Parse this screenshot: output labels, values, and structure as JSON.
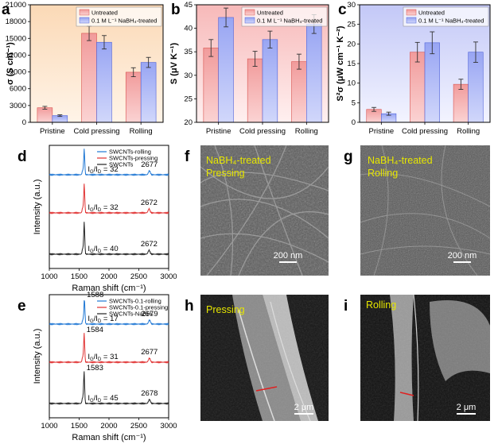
{
  "panels": {
    "a": "a",
    "b": "b",
    "c": "c",
    "d": "d",
    "e": "e",
    "f": "f",
    "g": "g",
    "h": "h",
    "i": "i"
  },
  "colors": {
    "untreated": "#f4a6a6",
    "treated": "#a9b4f5",
    "untreated_edge": "#d9534f",
    "treated_edge": "#4f62d9",
    "rolling_line": "#1f77d4",
    "pressing_line": "#e03030",
    "base_line": "#222222",
    "sem_text": "#e6e600"
  },
  "chart_data": [
    {
      "id": "a",
      "type": "bar",
      "categories": [
        "Pristine",
        "Cold pressing",
        "Rolling"
      ],
      "ylabel": "σ (S cm⁻¹)",
      "ylim": [
        0,
        21000
      ],
      "yticks": [
        "0",
        "3000",
        "6000",
        "9000",
        "12000",
        "15000",
        "18000",
        "21000"
      ],
      "background": "orange-gradient",
      "legend": "top-right",
      "series": [
        {
          "name": "Untreated",
          "values": [
            2600,
            15900,
            8950
          ],
          "errors": [
            250,
            1300,
            800
          ]
        },
        {
          "name": "0.1 M L⁻¹ NaBH₄-treated",
          "values": [
            1200,
            14300,
            10700
          ],
          "errors": [
            150,
            1200,
            900
          ]
        }
      ]
    },
    {
      "id": "b",
      "type": "bar",
      "categories": [
        "Pristine",
        "Cold pressing",
        "Rolling"
      ],
      "ylabel": "S (μV K⁻¹)",
      "ylim": [
        20,
        45
      ],
      "yticks": [
        "20",
        "25",
        "30",
        "35",
        "40",
        "45"
      ],
      "background": "red-gradient",
      "legend": "top-right",
      "series": [
        {
          "name": "Untreated",
          "values": [
            35.8,
            33.5,
            32.9
          ],
          "errors": [
            1.8,
            1.6,
            1.6
          ]
        },
        {
          "name": "0.1 M L⁻¹ NaBH₄-treated",
          "values": [
            42.3,
            37.6,
            40.9
          ],
          "errors": [
            2.0,
            1.8,
            2.0
          ]
        }
      ]
    },
    {
      "id": "c",
      "type": "bar",
      "categories": [
        "Pristine",
        "Cold pressing",
        "Rolling"
      ],
      "ylabel": "S²σ (μW cm⁻¹ K⁻²)",
      "ylim": [
        0,
        30
      ],
      "yticks": [
        "0",
        "5",
        "10",
        "15",
        "20",
        "25",
        "30"
      ],
      "background": "blue-gradient",
      "legend": "top-right",
      "series": [
        {
          "name": "Untreated",
          "values": [
            3.3,
            17.9,
            9.7
          ],
          "errors": [
            0.5,
            2.5,
            1.3
          ]
        },
        {
          "name": "0.1 M L⁻¹ NaBH₄-treated",
          "values": [
            2.2,
            20.3,
            17.9
          ],
          "errors": [
            0.4,
            2.8,
            2.6
          ]
        }
      ]
    },
    {
      "id": "d",
      "type": "line",
      "xlabel": "Raman shift (cm⁻¹)",
      "ylabel": "Intensity (a.u.)",
      "xlim": [
        1000,
        3000
      ],
      "xticks": [
        "1000",
        "1500",
        "2000",
        "2500",
        "3000"
      ],
      "series": [
        {
          "name": "SWCNTs-rolling",
          "ratio": "32",
          "peak_2d": "2677"
        },
        {
          "name": "SWCNTs-pressing",
          "ratio": "32",
          "peak_2d": "2672"
        },
        {
          "name": "SWCNTs",
          "ratio": "40",
          "peak_2d": "2672"
        }
      ]
    },
    {
      "id": "e",
      "type": "line",
      "xlabel": "Raman shift (cm⁻¹)",
      "ylabel": "Intensity (a.u.)",
      "xlim": [
        1000,
        3000
      ],
      "xticks": [
        "1000",
        "1500",
        "2000",
        "2500",
        "3000"
      ],
      "series": [
        {
          "name": "SWCNTs-0.1-rolling",
          "ratio": "17",
          "peak_g": "1588",
          "peak_2d": "2679"
        },
        {
          "name": "SWCNTs-0.1-pressing",
          "ratio": "31",
          "peak_g": "1584",
          "peak_2d": "2677"
        },
        {
          "name": "SWCNTs-NaBH₄",
          "ratio": "45",
          "peak_g": "1583",
          "peak_2d": "2678"
        }
      ]
    }
  ],
  "sem": {
    "f": {
      "line1": "NaBH₄-treated",
      "line2": "Pressing",
      "scale": "200 nm"
    },
    "g": {
      "line1": "NaBH₄-treated",
      "line2": "Rolling",
      "scale": "200 nm"
    },
    "h": {
      "line1": "Pressing",
      "scale": "2 μm"
    },
    "i": {
      "line1": "Rolling",
      "scale": "2 μm"
    }
  },
  "ratio_prefix": "I",
  "ratio_sub_g": "G",
  "ratio_sub_d": "D",
  "ratio_eq": " = "
}
